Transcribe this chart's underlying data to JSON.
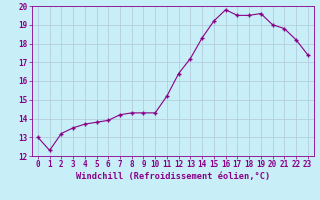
{
  "x": [
    0,
    1,
    2,
    3,
    4,
    5,
    6,
    7,
    8,
    9,
    10,
    11,
    12,
    13,
    14,
    15,
    16,
    17,
    18,
    19,
    20,
    21,
    22,
    23
  ],
  "y": [
    13.0,
    12.3,
    13.2,
    13.5,
    13.7,
    13.8,
    13.9,
    14.2,
    14.3,
    14.3,
    14.3,
    15.2,
    16.4,
    17.2,
    18.3,
    19.2,
    19.8,
    19.5,
    19.5,
    19.6,
    19.0,
    18.8,
    18.2,
    17.4
  ],
  "xlabel": "Windchill (Refroidissement éolien,°C)",
  "line_color": "#880088",
  "marker": "+",
  "background_color": "#c8eef8",
  "grid_color": "#b0c8d8",
  "ylim": [
    12,
    20
  ],
  "xlim": [
    -0.5,
    23.5
  ],
  "yticks": [
    12,
    13,
    14,
    15,
    16,
    17,
    18,
    19,
    20
  ],
  "xticks": [
    0,
    1,
    2,
    3,
    4,
    5,
    6,
    7,
    8,
    9,
    10,
    11,
    12,
    13,
    14,
    15,
    16,
    17,
    18,
    19,
    20,
    21,
    22,
    23
  ],
  "tick_label_fontsize": 5.5,
  "xlabel_fontsize": 6.2
}
